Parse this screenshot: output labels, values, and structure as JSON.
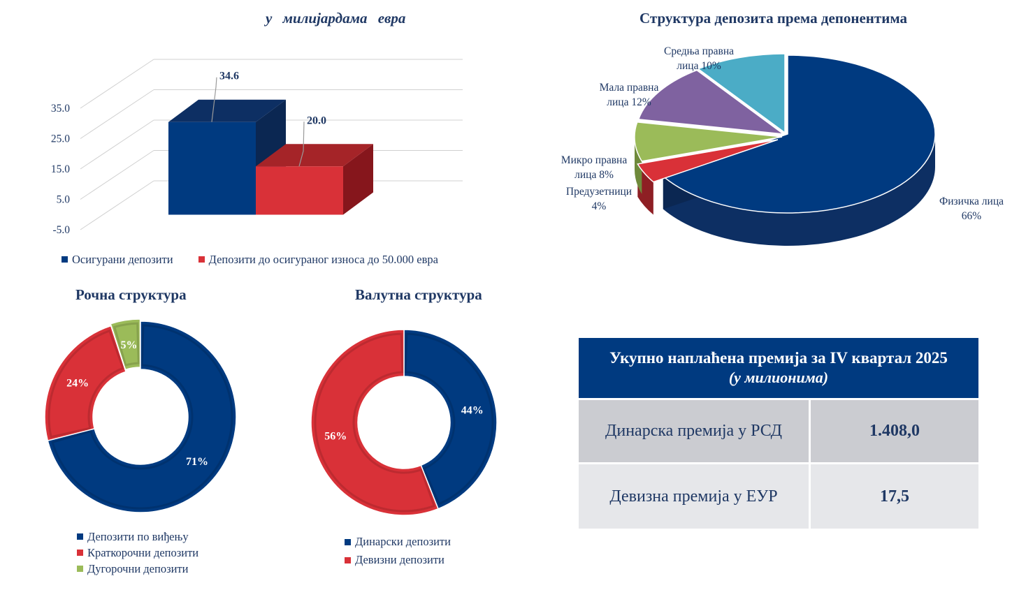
{
  "colors": {
    "navy": "#003a80",
    "red": "#d93138",
    "olive": "#9bbb59",
    "purple": "#7f62a0",
    "teal": "#4bacc6",
    "text": "#1f3864"
  },
  "chart_data": [
    {
      "type": "bar",
      "title": "у милијардама евра",
      "ylim": [
        -5.0,
        35.0
      ],
      "yticks": [
        "35.0",
        "25.0",
        "15.0",
        "5.0",
        "-5.0"
      ],
      "categories": [
        "Осигурани депозити",
        "Депозити до осигураног износа до 50.000 евра"
      ],
      "values": [
        34.6,
        20.0
      ],
      "data_labels": [
        "34.6",
        "20.0"
      ],
      "legend": [
        "Осигурани депозити",
        "Депозити до осигураног износа до 50.000 евра"
      ]
    },
    {
      "type": "pie",
      "title": "Структура депозита према депонентима",
      "slices": [
        {
          "label_line1": "Физичка лица",
          "label_line2": "66%",
          "value": 66
        },
        {
          "label_line1": "Предузетници",
          "label_line2": "4%",
          "value": 4
        },
        {
          "label_line1": "Микро правна",
          "label_line2": "лица 8%",
          "value": 8
        },
        {
          "label_line1": "Мала правна",
          "label_line2": "лица 12%",
          "value": 12
        },
        {
          "label_line1": "Средња правна",
          "label_line2": "лица 10%",
          "value": 10
        }
      ]
    },
    {
      "type": "pie",
      "title": "Рочна структура",
      "slices": [
        {
          "name": "Депозити по виђењу",
          "value": 71,
          "label": "71%"
        },
        {
          "name": "Краткорочни депозити",
          "value": 24,
          "label": "24%"
        },
        {
          "name": "Дугорочни депозити",
          "value": 5,
          "label": "5%"
        }
      ]
    },
    {
      "type": "pie",
      "title": "Валутна структура",
      "slices": [
        {
          "name": "Динарски депозити",
          "value": 44,
          "label": "44%"
        },
        {
          "name": "Девизни депозити",
          "value": 56,
          "label": "56%"
        }
      ]
    }
  ],
  "premium": {
    "title": "Укупно наплаћена премија за IV квартал 2025",
    "subtitle": "(у милионима)",
    "rows": [
      {
        "label": "Динарска премија у РСД",
        "value": "1.408,0"
      },
      {
        "label": "Девизна премија у ЕУР",
        "value": "17,5"
      }
    ]
  }
}
